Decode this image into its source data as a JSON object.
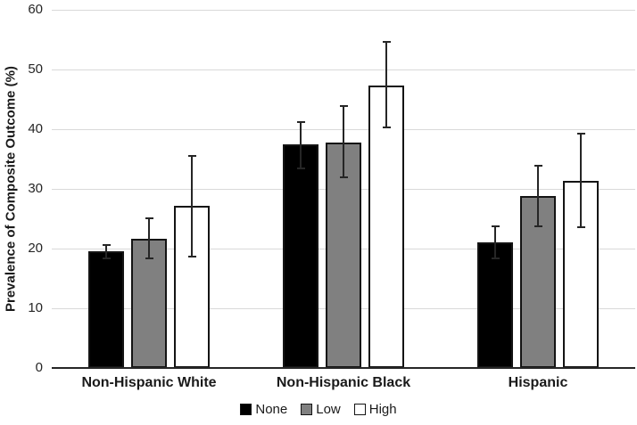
{
  "chart_data": {
    "type": "bar",
    "ylabel": "Prevalence of Composite Outcome (%)",
    "xlabel": "",
    "categories": [
      "Non-Hispanic White",
      "Non-Hispanic Black",
      "Hispanic"
    ],
    "series": [
      {
        "name": "None",
        "color": "#000000",
        "values": [
          19.5,
          37.4,
          21.0
        ],
        "ci_low": [
          18.3,
          33.5,
          18.3
        ],
        "ci_high": [
          20.6,
          41.2,
          23.7
        ]
      },
      {
        "name": "Low",
        "color": "#808080",
        "values": [
          21.7,
          37.8,
          28.8
        ],
        "ci_low": [
          18.3,
          32.0,
          23.8
        ],
        "ci_high": [
          25.1,
          43.9,
          33.9
        ]
      },
      {
        "name": "High",
        "color": "#ffffff",
        "values": [
          27.1,
          47.3,
          31.3
        ],
        "ci_low": [
          18.7,
          40.3,
          23.6
        ],
        "ci_high": [
          35.5,
          54.6,
          39.2
        ]
      }
    ],
    "ylim": [
      0,
      60
    ],
    "ytick_step": 10,
    "yticks": [
      0,
      10,
      20,
      30,
      40,
      50,
      60
    ],
    "grid": true,
    "error_bars": true,
    "legend_position": "bottom",
    "colors": {
      "gridline": "#d9d9d9",
      "axis": "#262626",
      "error_bar": "#262626",
      "bar_border": "#141414",
      "text": "#1a1a1a",
      "background": "#ffffff"
    }
  }
}
